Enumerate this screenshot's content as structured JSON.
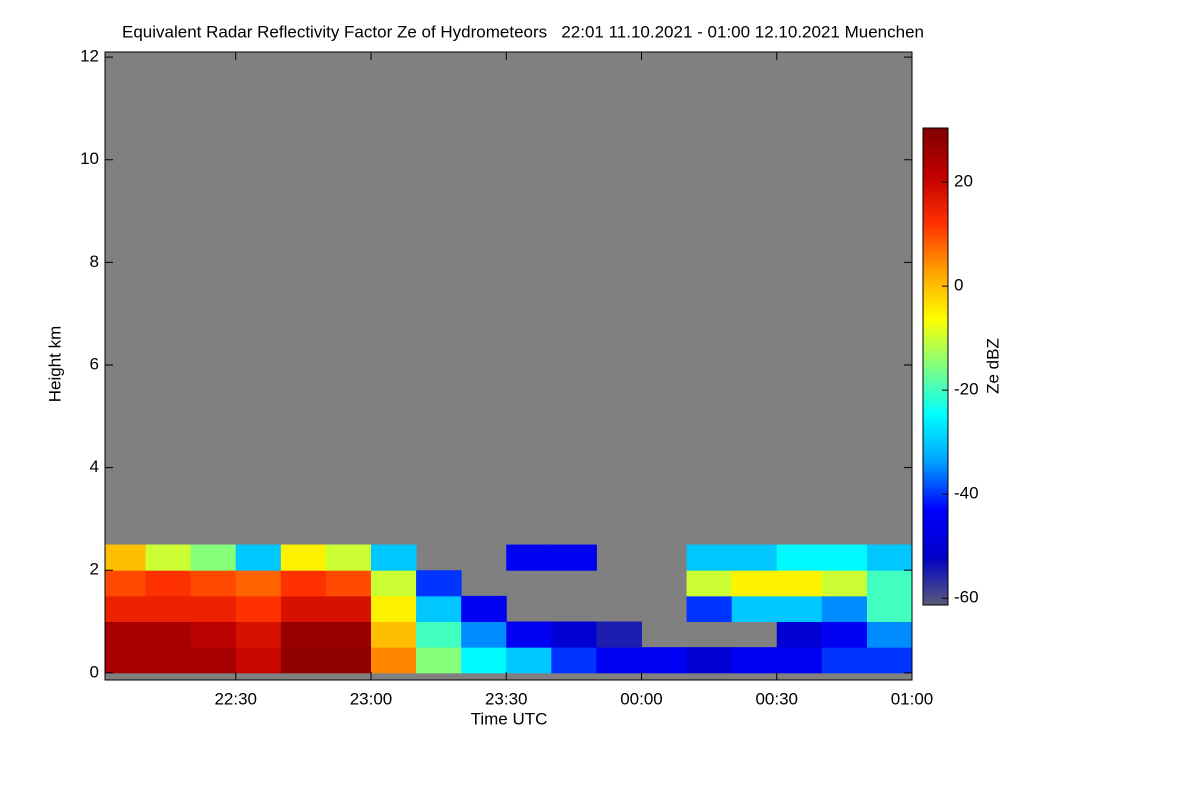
{
  "chart_data": {
    "type": "heatmap",
    "title": "Equivalent Radar Reflectivity Factor Ze of Hydrometeors   22:01 11.10.2021 - 01:00 12.10.2021 Muenchen",
    "xlabel": "Time UTC",
    "ylabel": "Height km",
    "colorbar_label": "Ze dBZ",
    "xlim": [
      "22:01",
      "01:00"
    ],
    "xticks": [
      "22:30",
      "23:00",
      "23:30",
      "00:00",
      "00:30",
      "01:00"
    ],
    "ylim": [
      -0.14,
      12.1
    ],
    "yticks": [
      0,
      2,
      4,
      6,
      8,
      10,
      12
    ],
    "clim": [
      -61.3,
      30.4
    ],
    "cticks": [
      20,
      0,
      -20,
      -40,
      -60
    ],
    "missing_color": "#808080",
    "colormap": [
      "#5a5a78",
      "#0000c8",
      "#0000ff",
      "#00a0ff",
      "#00ffff",
      "#80ff80",
      "#ffff00",
      "#ffa000",
      "#ff3000",
      "#c00000",
      "#800000"
    ],
    "x": [
      "22:01",
      "22:10",
      "22:20",
      "22:30",
      "22:40",
      "22:50",
      "23:00",
      "23:10",
      "23:20",
      "23:30",
      "23:40",
      "23:50",
      "00:00",
      "00:10",
      "00:20",
      "00:30",
      "00:40",
      "00:50",
      "01:00"
    ],
    "y": [
      0,
      0.5,
      1,
      1.5,
      2,
      2.5
    ],
    "z": [
      [
        25,
        25,
        25,
        20,
        28,
        28,
        5,
        -15,
        -25,
        -30,
        -40,
        -45,
        -45,
        -50,
        -45,
        -45,
        -40,
        -40
      ],
      [
        25,
        25,
        22,
        18,
        27,
        27,
        0,
        -20,
        -35,
        -45,
        -50,
        -55,
        null,
        null,
        null,
        -50,
        -45,
        -35
      ],
      [
        15,
        15,
        15,
        12,
        18,
        18,
        -5,
        -30,
        -45,
        null,
        null,
        null,
        null,
        -40,
        -30,
        -30,
        -35,
        -20
      ],
      [
        10,
        12,
        10,
        8,
        12,
        10,
        -10,
        -40,
        null,
        null,
        null,
        null,
        null,
        -10,
        -5,
        -5,
        -10,
        -20
      ],
      [
        0,
        -10,
        -15,
        -30,
        -5,
        -10,
        -30,
        null,
        null,
        -45,
        -45,
        null,
        null,
        -30,
        -30,
        -25,
        -25,
        -30
      ]
    ]
  }
}
